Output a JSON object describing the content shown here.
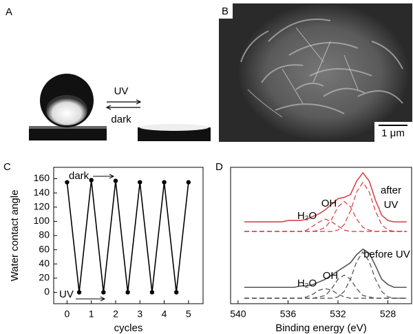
{
  "panels": {
    "a": {
      "label": "A",
      "forward": "UV",
      "backward": "dark"
    },
    "b": {
      "label": "B",
      "scale_bar": "1 μm"
    }
  },
  "chart_data": [
    {
      "type": "line",
      "panel_label": "C",
      "xlabel": "cycles",
      "ylabel": "Water contact angle",
      "x": [
        0,
        0.5,
        1,
        1.5,
        2,
        2.5,
        3,
        3.5,
        4,
        4.5,
        5
      ],
      "series": [
        {
          "color": "#000000",
          "values": [
            155,
            0,
            158,
            0,
            157,
            0,
            155,
            0,
            155,
            0,
            155
          ]
        }
      ],
      "markers": true,
      "xlim": [
        -0.55,
        5.6
      ],
      "ylim": [
        -16,
        176
      ],
      "xticks": [
        0,
        1,
        2,
        3,
        4,
        5
      ],
      "yticks": [
        0,
        20,
        40,
        60,
        80,
        100,
        120,
        140,
        160
      ],
      "annotations": [
        "dark",
        "UV"
      ]
    },
    {
      "type": "line",
      "panel_label": "D",
      "xlabel": "Binding energy (eV)",
      "x": [
        539.5,
        539,
        538.5,
        538,
        537.5,
        537,
        536.5,
        536,
        535.5,
        535,
        534.5,
        534,
        533.5,
        533,
        532.5,
        532,
        531.5,
        531,
        530.5,
        530,
        529.5,
        529,
        528.5,
        528,
        527.5,
        527,
        526.5
      ],
      "xlim": [
        540.6,
        526.1
      ],
      "ylim": [
        0,
        100
      ],
      "xticks": [
        540,
        536,
        532,
        528
      ],
      "series": [
        {
          "color": "#d9434d",
          "dash": false,
          "values": [
            60,
            60,
            60,
            60,
            60,
            60,
            60,
            61,
            61,
            61,
            62,
            64,
            66,
            69,
            73,
            77,
            78,
            80,
            90,
            96,
            90,
            76,
            65,
            61,
            60,
            60,
            60
          ]
        },
        {
          "color": "#d9434d",
          "dash": true,
          "values": [
            53,
            53,
            53,
            53,
            53,
            53,
            53,
            53,
            53,
            53,
            53,
            53,
            53,
            53,
            53,
            54,
            58,
            68,
            82,
            89,
            82,
            68,
            58,
            54,
            53,
            53,
            53
          ]
        },
        {
          "color": "#d9434d",
          "dash": true,
          "values": [
            53,
            53,
            53,
            53,
            53,
            53,
            53,
            53,
            53,
            53,
            53,
            53,
            54,
            56,
            62,
            71,
            75,
            71,
            62,
            56,
            54,
            53,
            53,
            53,
            53,
            53,
            53
          ]
        },
        {
          "color": "#d9434d",
          "dash": true,
          "values": [
            53,
            53,
            53,
            53,
            53,
            53,
            53,
            53,
            53,
            53,
            54,
            57,
            60,
            62,
            60,
            57,
            54,
            53,
            53,
            53,
            53,
            53,
            53,
            53,
            53,
            53,
            53
          ]
        },
        {
          "color": "#555555",
          "dash": false,
          "values": [
            12,
            12,
            12,
            12,
            12,
            12,
            12,
            12,
            12,
            13,
            13,
            14,
            16,
            18,
            21,
            24,
            27,
            30,
            36,
            40,
            37,
            28,
            18,
            14,
            12,
            12,
            12
          ]
        },
        {
          "color": "#555555",
          "dash": true,
          "values": [
            4,
            4,
            4,
            4,
            4,
            4,
            4,
            4,
            4,
            4,
            4,
            4,
            4,
            4,
            4,
            5,
            9,
            18,
            31,
            38,
            31,
            18,
            9,
            5,
            4,
            4,
            4
          ]
        },
        {
          "color": "#555555",
          "dash": true,
          "values": [
            4,
            4,
            4,
            4,
            4,
            4,
            4,
            4,
            4,
            4,
            4,
            4,
            5,
            6,
            11,
            18,
            21,
            18,
            11,
            6,
            5,
            4,
            4,
            4,
            4,
            4,
            4
          ]
        },
        {
          "color": "#555555",
          "dash": true,
          "values": [
            4,
            4,
            4,
            4,
            4,
            4,
            4,
            4,
            4,
            4,
            5,
            7,
            10,
            11,
            10,
            7,
            5,
            4,
            4,
            4,
            4,
            4,
            4,
            4,
            4,
            4,
            4
          ]
        }
      ],
      "annotations": [
        "OH",
        "H₂O",
        "after",
        "UV",
        "before UV",
        "H₂O",
        "OH"
      ]
    }
  ]
}
